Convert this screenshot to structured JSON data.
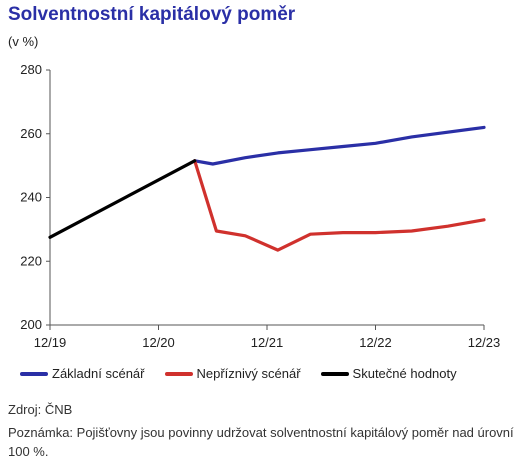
{
  "title": "Solventnostní kapitálový poměr",
  "unit": "(v %)",
  "source": "Zdroj: ČNB",
  "footnote": "Poznámka: Pojišťovny jsou povinny udržovat solventnostní kapitálový poměr nad úrovní 100 %.",
  "chart_data": {
    "type": "line",
    "x_categories": [
      "12/19",
      "12/20",
      "12/21",
      "12/22",
      "12/23"
    ],
    "ylim": [
      200,
      280
    ],
    "yticks": [
      200,
      220,
      240,
      260,
      280
    ],
    "grid": false,
    "legend_position": "bottom",
    "series": [
      {
        "name": "Základní scénář",
        "color": "#2a2fa6",
        "points": [
          [
            4,
            251.5
          ],
          [
            4.5,
            250.5
          ],
          [
            5.4,
            252.5
          ],
          [
            6.3,
            254
          ],
          [
            7.2,
            255
          ],
          [
            8.1,
            256
          ],
          [
            9.0,
            257
          ],
          [
            10,
            259
          ],
          [
            12,
            262
          ]
        ]
      },
      {
        "name": "Nepříznivý scénář",
        "color": "#d0312d",
        "points": [
          [
            4,
            251.5
          ],
          [
            4.6,
            229.5
          ],
          [
            5.4,
            228
          ],
          [
            6.3,
            223.5
          ],
          [
            7.2,
            228.5
          ],
          [
            8.1,
            229
          ],
          [
            9.0,
            229
          ],
          [
            10,
            229.5
          ],
          [
            11,
            231
          ],
          [
            12,
            233
          ]
        ]
      },
      {
        "name": "Skutečné hodnoty",
        "color": "#000000",
        "points": [
          [
            0,
            227.5
          ],
          [
            4,
            251.5
          ]
        ]
      }
    ]
  }
}
